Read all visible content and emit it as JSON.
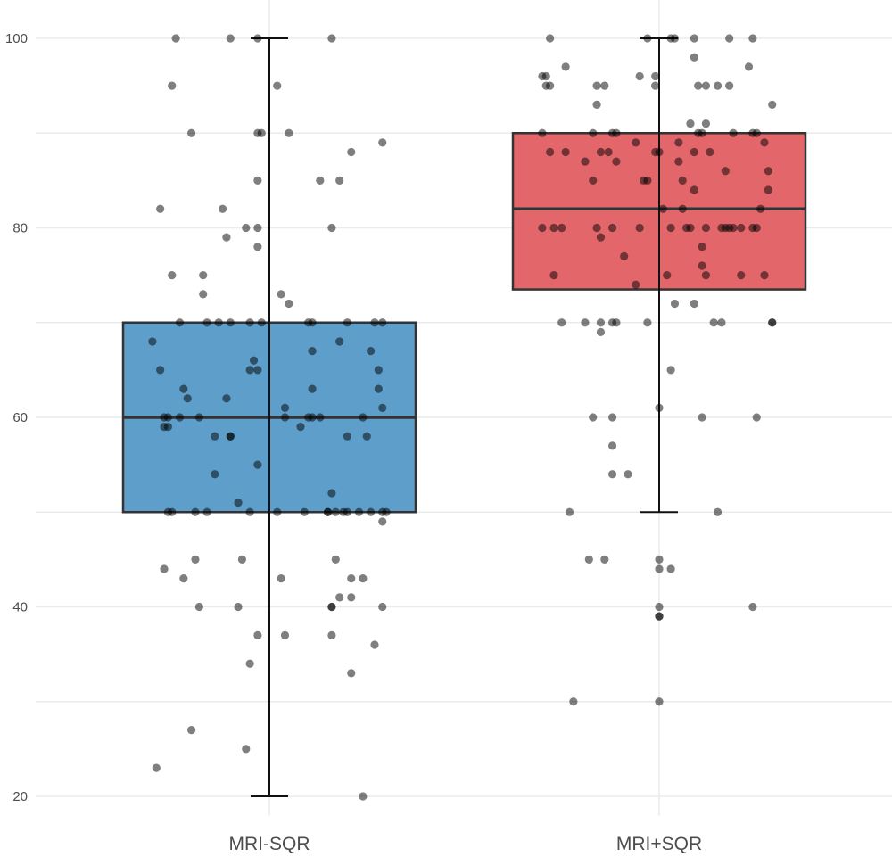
{
  "chart_data": {
    "type": "box",
    "title": "",
    "xlabel": "",
    "ylabel": "",
    "ylim": [
      20,
      100
    ],
    "yticks": [
      20,
      40,
      60,
      80,
      100
    ],
    "grid": true,
    "categories": [
      "MRI-SQR",
      "MRI+SQR"
    ],
    "colors": {
      "MRI-SQR": "#5e9ecb",
      "MRI+SQR": "#e2666a",
      "points": "#000000",
      "outline": "#333333"
    },
    "boxes": [
      {
        "name": "MRI-SQR",
        "whisker_low": 20,
        "q1": 50,
        "median": 60,
        "q3": 70,
        "whisker_high": 100
      },
      {
        "name": "MRI+SQR",
        "whisker_low": 50,
        "q1": 73.5,
        "median": 82,
        "q3": 90,
        "whisker_high": 100
      }
    ],
    "points_note": "each point is [horizontal jitter in category widths, value]",
    "points": [
      [
        [
          -0.24,
          100
        ],
        [
          -0.1,
          100
        ],
        [
          -0.03,
          100
        ],
        [
          0.16,
          100
        ],
        [
          -0.25,
          95
        ],
        [
          0.02,
          95
        ],
        [
          -0.2,
          90
        ],
        [
          -0.03,
          90
        ],
        [
          -0.02,
          90
        ],
        [
          0.05,
          90
        ],
        [
          -0.03,
          85
        ],
        [
          0.13,
          85
        ],
        [
          0.18,
          85
        ],
        [
          0.21,
          88
        ],
        [
          0.29,
          89
        ],
        [
          -0.28,
          82
        ],
        [
          -0.12,
          82
        ],
        [
          -0.06,
          80
        ],
        [
          -0.03,
          80
        ],
        [
          0.16,
          80
        ],
        [
          -0.11,
          79
        ],
        [
          -0.03,
          78
        ],
        [
          -0.25,
          75
        ],
        [
          -0.17,
          75
        ],
        [
          -0.17,
          73
        ],
        [
          0.03,
          73
        ],
        [
          0.05,
          72
        ],
        [
          -0.23,
          70
        ],
        [
          -0.16,
          70
        ],
        [
          -0.13,
          70
        ],
        [
          -0.1,
          70
        ],
        [
          -0.05,
          70
        ],
        [
          -0.02,
          70
        ],
        [
          0.1,
          70
        ],
        [
          0.11,
          70
        ],
        [
          0.2,
          70
        ],
        [
          0.27,
          70
        ],
        [
          0.29,
          70
        ],
        [
          -0.3,
          68
        ],
        [
          0.18,
          68
        ],
        [
          0.11,
          67
        ],
        [
          0.26,
          67
        ],
        [
          -0.04,
          66
        ],
        [
          -0.28,
          65
        ],
        [
          -0.05,
          65
        ],
        [
          -0.03,
          65
        ],
        [
          0.28,
          65
        ],
        [
          -0.22,
          63
        ],
        [
          0.11,
          63
        ],
        [
          0.28,
          63
        ],
        [
          -0.21,
          62
        ],
        [
          -0.11,
          62
        ],
        [
          0.04,
          61
        ],
        [
          0.29,
          61
        ],
        [
          -0.27,
          60
        ],
        [
          -0.26,
          60
        ],
        [
          -0.23,
          60
        ],
        [
          -0.18,
          60
        ],
        [
          0.04,
          60
        ],
        [
          0.1,
          60
        ],
        [
          0.11,
          60
        ],
        [
          0.13,
          60
        ],
        [
          0.24,
          60
        ],
        [
          -0.27,
          59
        ],
        [
          -0.26,
          59
        ],
        [
          0.08,
          59
        ],
        [
          -0.14,
          58
        ],
        [
          -0.1,
          58
        ],
        [
          -0.1,
          58
        ],
        [
          0.2,
          58
        ],
        [
          0.25,
          58
        ],
        [
          -0.03,
          55
        ],
        [
          -0.14,
          54
        ],
        [
          0.16,
          52
        ],
        [
          -0.08,
          51
        ],
        [
          -0.26,
          50
        ],
        [
          -0.25,
          50
        ],
        [
          -0.19,
          50
        ],
        [
          -0.16,
          50
        ],
        [
          -0.05,
          50
        ],
        [
          0.02,
          50
        ],
        [
          0.09,
          50
        ],
        [
          0.15,
          50
        ],
        [
          0.15,
          50
        ],
        [
          0.17,
          50
        ],
        [
          0.19,
          50
        ],
        [
          0.2,
          50
        ],
        [
          0.23,
          50
        ],
        [
          0.26,
          50
        ],
        [
          0.29,
          50
        ],
        [
          0.3,
          50
        ],
        [
          0.29,
          49
        ],
        [
          -0.19,
          45
        ],
        [
          -0.07,
          45
        ],
        [
          0.17,
          45
        ],
        [
          -0.27,
          44
        ],
        [
          -0.22,
          43
        ],
        [
          0.03,
          43
        ],
        [
          0.21,
          43
        ],
        [
          0.24,
          43
        ],
        [
          0.18,
          41
        ],
        [
          0.21,
          41
        ],
        [
          -0.18,
          40
        ],
        [
          -0.08,
          40
        ],
        [
          0.16,
          40
        ],
        [
          0.16,
          40
        ],
        [
          0.29,
          40
        ],
        [
          -0.03,
          37
        ],
        [
          0.04,
          37
        ],
        [
          0.16,
          37
        ],
        [
          0.27,
          36
        ],
        [
          -0.05,
          34
        ],
        [
          0.21,
          33
        ],
        [
          -0.2,
          27
        ],
        [
          -0.06,
          25
        ],
        [
          -0.29,
          23
        ],
        [
          0.24,
          20
        ]
      ],
      [
        [
          -0.28,
          100
        ],
        [
          -0.03,
          100
        ],
        [
          0.03,
          100
        ],
        [
          0.04,
          100
        ],
        [
          0.09,
          100
        ],
        [
          0.18,
          100
        ],
        [
          0.24,
          100
        ],
        [
          0.09,
          98
        ],
        [
          -0.24,
          97
        ],
        [
          0.23,
          97
        ],
        [
          -0.3,
          96
        ],
        [
          -0.29,
          96
        ],
        [
          -0.05,
          96
        ],
        [
          -0.01,
          96
        ],
        [
          -0.29,
          95
        ],
        [
          -0.28,
          95
        ],
        [
          -0.16,
          95
        ],
        [
          -0.14,
          95
        ],
        [
          -0.01,
          95
        ],
        [
          0.1,
          95
        ],
        [
          0.12,
          95
        ],
        [
          0.15,
          95
        ],
        [
          0.18,
          95
        ],
        [
          -0.16,
          93
        ],
        [
          0.29,
          93
        ],
        [
          0.08,
          91
        ],
        [
          0.12,
          91
        ],
        [
          -0.3,
          90
        ],
        [
          -0.17,
          90
        ],
        [
          -0.12,
          90
        ],
        [
          -0.11,
          90
        ],
        [
          0.1,
          90
        ],
        [
          0.11,
          90
        ],
        [
          0.19,
          90
        ],
        [
          0.24,
          90
        ],
        [
          0.25,
          90
        ],
        [
          -0.06,
          89
        ],
        [
          0.05,
          89
        ],
        [
          0.27,
          89
        ],
        [
          -0.28,
          88
        ],
        [
          -0.24,
          88
        ],
        [
          -0.15,
          88
        ],
        [
          -0.13,
          88
        ],
        [
          -0.01,
          88
        ],
        [
          0.0,
          88
        ],
        [
          0.09,
          88
        ],
        [
          0.13,
          88
        ],
        [
          -0.19,
          87
        ],
        [
          -0.11,
          87
        ],
        [
          0.05,
          87
        ],
        [
          0.17,
          86
        ],
        [
          0.28,
          86
        ],
        [
          -0.17,
          85
        ],
        [
          -0.04,
          85
        ],
        [
          -0.03,
          85
        ],
        [
          0.06,
          85
        ],
        [
          0.09,
          84
        ],
        [
          0.28,
          84
        ],
        [
          0.01,
          82
        ],
        [
          0.06,
          82
        ],
        [
          0.26,
          82
        ],
        [
          -0.3,
          80
        ],
        [
          -0.27,
          80
        ],
        [
          -0.25,
          80
        ],
        [
          -0.16,
          80
        ],
        [
          -0.12,
          80
        ],
        [
          -0.05,
          80
        ],
        [
          0.03,
          80
        ],
        [
          0.07,
          80
        ],
        [
          0.08,
          80
        ],
        [
          0.12,
          80
        ],
        [
          0.16,
          80
        ],
        [
          0.17,
          80
        ],
        [
          0.18,
          80
        ],
        [
          0.19,
          80
        ],
        [
          0.21,
          80
        ],
        [
          0.24,
          80
        ],
        [
          0.25,
          80
        ],
        [
          -0.15,
          79
        ],
        [
          0.11,
          78
        ],
        [
          -0.09,
          77
        ],
        [
          0.11,
          76
        ],
        [
          -0.27,
          75
        ],
        [
          0.02,
          75
        ],
        [
          0.12,
          75
        ],
        [
          0.21,
          75
        ],
        [
          0.27,
          75
        ],
        [
          -0.06,
          74
        ],
        [
          0.04,
          72
        ],
        [
          0.09,
          72
        ],
        [
          -0.25,
          70
        ],
        [
          -0.19,
          70
        ],
        [
          -0.15,
          70
        ],
        [
          -0.12,
          70
        ],
        [
          -0.11,
          70
        ],
        [
          -0.03,
          70
        ],
        [
          0.14,
          70
        ],
        [
          0.16,
          70
        ],
        [
          0.29,
          70
        ],
        [
          0.29,
          70
        ],
        [
          -0.15,
          69
        ],
        [
          0.03,
          65
        ],
        [
          0.0,
          61
        ],
        [
          -0.17,
          60
        ],
        [
          -0.12,
          60
        ],
        [
          0.11,
          60
        ],
        [
          0.25,
          60
        ],
        [
          -0.12,
          57
        ],
        [
          -0.12,
          54
        ],
        [
          -0.08,
          54
        ],
        [
          -0.23,
          50
        ],
        [
          0.15,
          50
        ],
        [
          -0.18,
          45
        ],
        [
          -0.14,
          45
        ],
        [
          0.0,
          45
        ],
        [
          0.0,
          44
        ],
        [
          0.03,
          44
        ],
        [
          0.0,
          40
        ],
        [
          0.24,
          40
        ],
        [
          0.0,
          39
        ],
        [
          0.0,
          39
        ],
        [
          -0.22,
          30
        ],
        [
          0.0,
          30
        ]
      ]
    ]
  }
}
